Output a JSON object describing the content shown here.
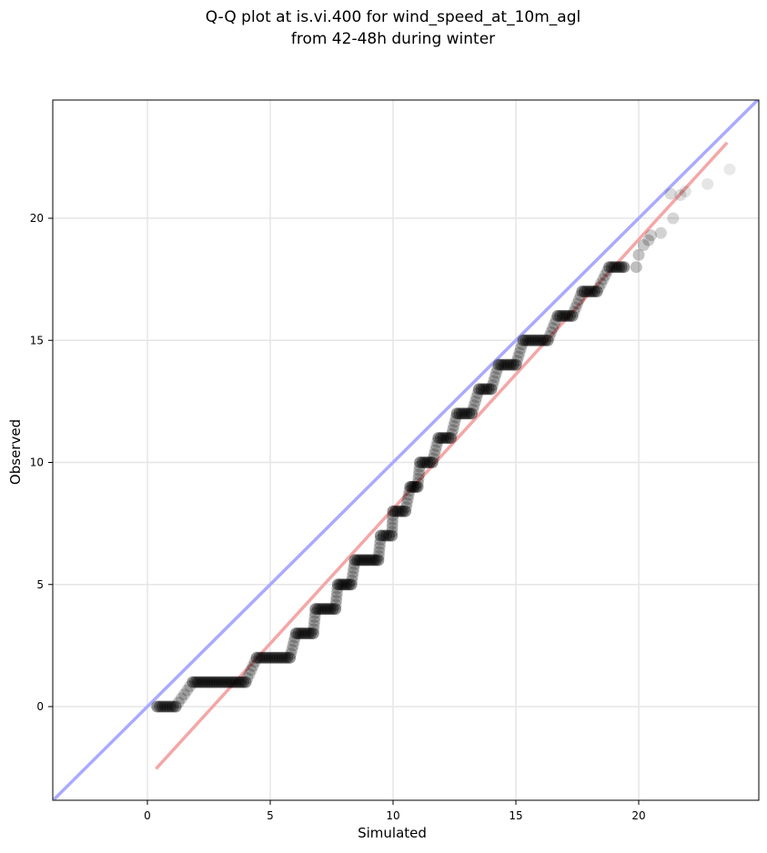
{
  "chart_data": {
    "type": "scatter",
    "title": "Q-Q plot at is.vi.400 for wind_speed_at_10m_agl\nfrom 42-48h during winter",
    "title_lines": [
      "Q-Q plot at is.vi.400 for wind_speed_at_10m_agl",
      "from 42-48h during winter"
    ],
    "xlabel": "Simulated",
    "ylabel": "Observed",
    "xlim": [
      -3.8,
      24.9
    ],
    "ylim": [
      -3.8,
      24.9
    ],
    "xticks": [
      0,
      5,
      10,
      15,
      20
    ],
    "yticks": [
      0,
      5,
      10,
      15,
      20
    ],
    "xtick_labels": [
      "0",
      "5",
      "10",
      "15",
      "20"
    ],
    "ytick_labels": [
      "0",
      "5",
      "10",
      "15",
      "20"
    ],
    "grid": true,
    "reference_line": {
      "name": "1:1 line",
      "color": "#aaaaff",
      "x": [
        -3.8,
        24.9
      ],
      "y": [
        -3.8,
        24.9
      ]
    },
    "fit_line": {
      "name": "fit line",
      "color": "#f4a7a7",
      "x": [
        0.35,
        23.6
      ],
      "y": [
        -2.55,
        23.1
      ]
    },
    "point_color": "#000000",
    "series": [
      {
        "steps": [
          {
            "y": 0,
            "x": [
              0.4,
              1.15
            ]
          },
          {
            "y": 1,
            "x": [
              1.85,
              4.0
            ]
          },
          {
            "y": 2,
            "x": [
              4.45,
              5.8
            ]
          },
          {
            "y": 3,
            "x": [
              6.05,
              6.75
            ]
          },
          {
            "y": 4,
            "x": [
              6.85,
              7.65
            ]
          },
          {
            "y": 5,
            "x": [
              7.75,
              8.3
            ]
          },
          {
            "y": 6,
            "x": [
              8.45,
              9.4
            ]
          },
          {
            "y": 7,
            "x": [
              9.5,
              9.95
            ]
          },
          {
            "y": 8,
            "x": [
              10.0,
              10.5
            ]
          },
          {
            "y": 9,
            "x": [
              10.7,
              11.0
            ]
          },
          {
            "y": 10,
            "x": [
              11.1,
              11.6
            ]
          },
          {
            "y": 11,
            "x": [
              11.85,
              12.35
            ]
          },
          {
            "y": 12,
            "x": [
              12.6,
              13.2
            ]
          },
          {
            "y": 13,
            "x": [
              13.5,
              14.0
            ]
          },
          {
            "y": 14,
            "x": [
              14.3,
              15.0
            ]
          },
          {
            "y": 15,
            "x": [
              15.3,
              16.3
            ]
          },
          {
            "y": 16,
            "x": [
              16.7,
              17.3
            ]
          },
          {
            "y": 17,
            "x": [
              17.7,
              18.3
            ]
          },
          {
            "y": 18,
            "x": [
              18.8,
              19.4
            ]
          }
        ],
        "tail_points": [
          [
            19.9,
            18.0
          ],
          [
            20.0,
            18.5
          ],
          [
            20.2,
            18.9
          ],
          [
            20.4,
            19.1
          ],
          [
            20.5,
            19.3
          ],
          [
            20.9,
            19.4
          ],
          [
            21.4,
            20.0
          ],
          [
            21.3,
            21.0
          ],
          [
            21.7,
            20.95
          ],
          [
            21.9,
            21.1
          ],
          [
            22.8,
            21.4
          ],
          [
            23.7,
            22.0
          ]
        ]
      }
    ]
  }
}
